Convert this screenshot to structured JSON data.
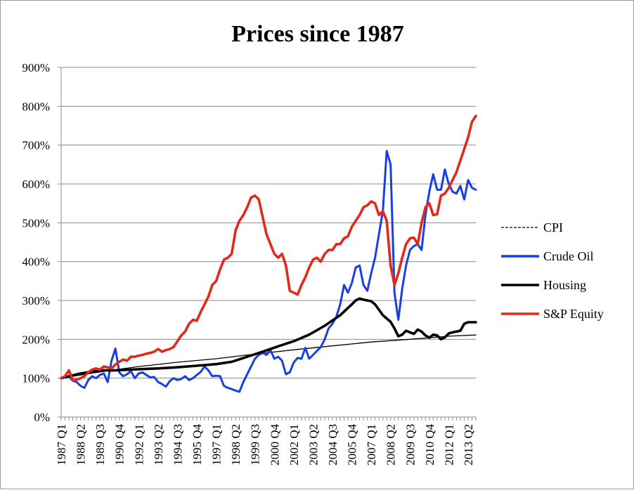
{
  "chart_data": {
    "type": "line",
    "title": "Prices since 1987",
    "xlabel": "",
    "ylabel": "",
    "ylim": [
      0,
      900
    ],
    "y_tick_labels": [
      "0%",
      "100%",
      "200%",
      "300%",
      "400%",
      "500%",
      "600%",
      "700%",
      "800%",
      "900%"
    ],
    "x_tick_labels": [
      "1987 Q1",
      "1988 Q2",
      "1989 Q3",
      "1990 Q4",
      "1992 Q1",
      "1993 Q2",
      "1994 Q3",
      "1995 Q4",
      "1997 Q1",
      "1998 Q2",
      "1999 Q3",
      "2000 Q4",
      "2002 Q1",
      "2003 Q2",
      "2004 Q3",
      "2005 Q4",
      "2007 Q1",
      "2008 Q2",
      "2009 Q3",
      "2010 Q4",
      "2012 Q1",
      "2013 Q2"
    ],
    "grid": true,
    "legend_position": "right",
    "series": [
      {
        "name": "CPI",
        "color": "#000000",
        "style": "thin",
        "points": [
          [
            0,
            100
          ],
          [
            10,
            116
          ],
          [
            20,
            130
          ],
          [
            30,
            141
          ],
          [
            40,
            150
          ],
          [
            50,
            162
          ],
          [
            60,
            173
          ],
          [
            70,
            183
          ],
          [
            80,
            193
          ],
          [
            90,
            200
          ],
          [
            100,
            208
          ],
          [
            107,
            211
          ]
        ]
      },
      {
        "name": "Crude Oil",
        "color": "#1a3fe0",
        "style": "medium",
        "points": [
          [
            0,
            100
          ],
          [
            2,
            105
          ],
          [
            3,
            93
          ],
          [
            4,
            90
          ],
          [
            5,
            80
          ],
          [
            6,
            75
          ],
          [
            7,
            95
          ],
          [
            8,
            105
          ],
          [
            9,
            100
          ],
          [
            10,
            108
          ],
          [
            11,
            112
          ],
          [
            12,
            90
          ],
          [
            13,
            145
          ],
          [
            14,
            176
          ],
          [
            15,
            115
          ],
          [
            16,
            105
          ],
          [
            17,
            110
          ],
          [
            18,
            118
          ],
          [
            19,
            100
          ],
          [
            20,
            112
          ],
          [
            21,
            115
          ],
          [
            22,
            108
          ],
          [
            23,
            102
          ],
          [
            24,
            103
          ],
          [
            25,
            90
          ],
          [
            26,
            85
          ],
          [
            27,
            78
          ],
          [
            28,
            92
          ],
          [
            29,
            100
          ],
          [
            30,
            95
          ],
          [
            31,
            98
          ],
          [
            32,
            105
          ],
          [
            33,
            95
          ],
          [
            34,
            100
          ],
          [
            35,
            108
          ],
          [
            36,
            116
          ],
          [
            37,
            130
          ],
          [
            38,
            120
          ],
          [
            39,
            105
          ],
          [
            40,
            106
          ],
          [
            41,
            105
          ],
          [
            42,
            80
          ],
          [
            43,
            75
          ],
          [
            44,
            72
          ],
          [
            45,
            68
          ],
          [
            46,
            65
          ],
          [
            47,
            90
          ],
          [
            48,
            110
          ],
          [
            49,
            130
          ],
          [
            50,
            150
          ],
          [
            51,
            160
          ],
          [
            52,
            165
          ],
          [
            53,
            160
          ],
          [
            54,
            172
          ],
          [
            55,
            150
          ],
          [
            56,
            155
          ],
          [
            57,
            145
          ],
          [
            58,
            110
          ],
          [
            59,
            115
          ],
          [
            60,
            140
          ],
          [
            61,
            152
          ],
          [
            62,
            150
          ],
          [
            63,
            178
          ],
          [
            64,
            150
          ],
          [
            65,
            160
          ],
          [
            66,
            170
          ],
          [
            67,
            180
          ],
          [
            68,
            200
          ],
          [
            69,
            228
          ],
          [
            70,
            240
          ],
          [
            71,
            258
          ],
          [
            72,
            290
          ],
          [
            73,
            340
          ],
          [
            74,
            320
          ],
          [
            75,
            345
          ],
          [
            76,
            385
          ],
          [
            77,
            390
          ],
          [
            78,
            340
          ],
          [
            79,
            325
          ],
          [
            80,
            370
          ],
          [
            81,
            410
          ],
          [
            82,
            470
          ],
          [
            83,
            530
          ],
          [
            84,
            685
          ],
          [
            85,
            650
          ],
          [
            86,
            320
          ],
          [
            87,
            250
          ],
          [
            88,
            330
          ],
          [
            89,
            390
          ],
          [
            90,
            430
          ],
          [
            91,
            440
          ],
          [
            92,
            445
          ],
          [
            93,
            430
          ],
          [
            94,
            520
          ],
          [
            95,
            580
          ],
          [
            96,
            625
          ],
          [
            97,
            585
          ],
          [
            98,
            585
          ],
          [
            99,
            637
          ],
          [
            100,
            600
          ],
          [
            101,
            580
          ],
          [
            102,
            575
          ],
          [
            103,
            595
          ],
          [
            104,
            560
          ],
          [
            105,
            610
          ],
          [
            106,
            590
          ],
          [
            107,
            585
          ]
        ]
      },
      {
        "name": "Housing",
        "color": "#000000",
        "style": "thick",
        "points": [
          [
            0,
            100
          ],
          [
            5,
            112
          ],
          [
            10,
            120
          ],
          [
            14,
            120
          ],
          [
            20,
            123
          ],
          [
            25,
            125
          ],
          [
            30,
            128
          ],
          [
            35,
            132
          ],
          [
            40,
            136
          ],
          [
            44,
            142
          ],
          [
            48,
            155
          ],
          [
            52,
            168
          ],
          [
            56,
            182
          ],
          [
            60,
            195
          ],
          [
            64,
            212
          ],
          [
            68,
            235
          ],
          [
            72,
            262
          ],
          [
            75,
            290
          ],
          [
            76,
            300
          ],
          [
            77,
            305
          ],
          [
            78,
            302
          ],
          [
            80,
            298
          ],
          [
            81,
            290
          ],
          [
            83,
            262
          ],
          [
            85,
            245
          ],
          [
            86,
            228
          ],
          [
            87,
            208
          ],
          [
            88,
            212
          ],
          [
            89,
            222
          ],
          [
            90,
            218
          ],
          [
            91,
            214
          ],
          [
            92,
            225
          ],
          [
            93,
            220
          ],
          [
            94,
            210
          ],
          [
            95,
            204
          ],
          [
            96,
            212
          ],
          [
            97,
            210
          ],
          [
            98,
            200
          ],
          [
            99,
            205
          ],
          [
            100,
            215
          ],
          [
            101,
            218
          ],
          [
            102,
            220
          ],
          [
            103,
            222
          ],
          [
            104,
            240
          ],
          [
            105,
            244
          ],
          [
            107,
            244
          ]
        ]
      },
      {
        "name": "S&P Equity",
        "color": "#e02a1a",
        "style": "thick",
        "points": [
          [
            0,
            100
          ],
          [
            1,
            105
          ],
          [
            2,
            120
          ],
          [
            3,
            95
          ],
          [
            4,
            96
          ],
          [
            5,
            100
          ],
          [
            6,
            105
          ],
          [
            7,
            115
          ],
          [
            8,
            122
          ],
          [
            9,
            125
          ],
          [
            10,
            122
          ],
          [
            11,
            130
          ],
          [
            12,
            128
          ],
          [
            13,
            125
          ],
          [
            14,
            135
          ],
          [
            15,
            142
          ],
          [
            16,
            148
          ],
          [
            17,
            145
          ],
          [
            18,
            155
          ],
          [
            19,
            155
          ],
          [
            20,
            158
          ],
          [
            21,
            160
          ],
          [
            22,
            163
          ],
          [
            23,
            165
          ],
          [
            24,
            168
          ],
          [
            25,
            175
          ],
          [
            26,
            168
          ],
          [
            27,
            172
          ],
          [
            28,
            175
          ],
          [
            29,
            180
          ],
          [
            30,
            195
          ],
          [
            31,
            210
          ],
          [
            32,
            220
          ],
          [
            33,
            240
          ],
          [
            34,
            250
          ],
          [
            35,
            248
          ],
          [
            36,
            270
          ],
          [
            37,
            290
          ],
          [
            38,
            310
          ],
          [
            39,
            340
          ],
          [
            40,
            350
          ],
          [
            41,
            380
          ],
          [
            42,
            405
          ],
          [
            43,
            410
          ],
          [
            44,
            420
          ],
          [
            45,
            480
          ],
          [
            46,
            505
          ],
          [
            47,
            520
          ],
          [
            48,
            540
          ],
          [
            49,
            565
          ],
          [
            50,
            570
          ],
          [
            51,
            560
          ],
          [
            52,
            515
          ],
          [
            53,
            470
          ],
          [
            54,
            445
          ],
          [
            55,
            420
          ],
          [
            56,
            410
          ],
          [
            57,
            420
          ],
          [
            58,
            390
          ],
          [
            59,
            325
          ],
          [
            60,
            320
          ],
          [
            61,
            315
          ],
          [
            62,
            340
          ],
          [
            63,
            360
          ],
          [
            64,
            385
          ],
          [
            65,
            405
          ],
          [
            66,
            410
          ],
          [
            67,
            400
          ],
          [
            68,
            420
          ],
          [
            69,
            430
          ],
          [
            70,
            430
          ],
          [
            71,
            445
          ],
          [
            72,
            445
          ],
          [
            73,
            460
          ],
          [
            74,
            465
          ],
          [
            75,
            490
          ],
          [
            76,
            505
          ],
          [
            77,
            520
          ],
          [
            78,
            540
          ],
          [
            79,
            545
          ],
          [
            80,
            555
          ],
          [
            81,
            550
          ],
          [
            82,
            520
          ],
          [
            83,
            530
          ],
          [
            84,
            505
          ],
          [
            85,
            390
          ],
          [
            86,
            340
          ],
          [
            87,
            370
          ],
          [
            88,
            410
          ],
          [
            89,
            445
          ],
          [
            90,
            460
          ],
          [
            91,
            462
          ],
          [
            92,
            445
          ],
          [
            93,
            500
          ],
          [
            94,
            540
          ],
          [
            95,
            550
          ],
          [
            96,
            520
          ],
          [
            97,
            522
          ],
          [
            98,
            570
          ],
          [
            99,
            575
          ],
          [
            100,
            590
          ],
          [
            101,
            610
          ],
          [
            102,
            630
          ],
          [
            103,
            660
          ],
          [
            104,
            690
          ],
          [
            105,
            720
          ],
          [
            106,
            760
          ],
          [
            107,
            775
          ]
        ]
      }
    ]
  }
}
